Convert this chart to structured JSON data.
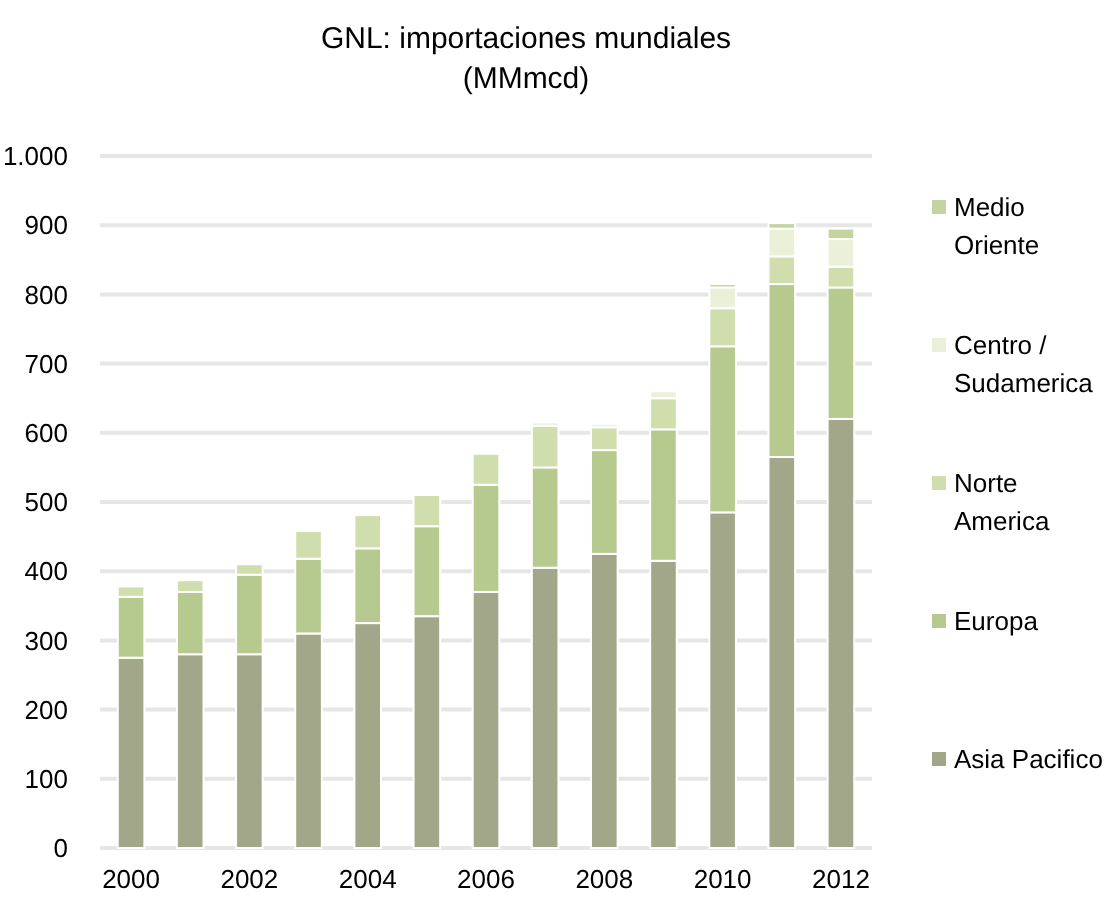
{
  "chart_data": {
    "type": "bar",
    "title": "GNL: importaciones mundiales",
    "subtitle": "(MMmcd)",
    "stacked": true,
    "categories": [
      "2000",
      null,
      "2002",
      null,
      "2004",
      null,
      "2006",
      null,
      "2008",
      null,
      "2010",
      null,
      "2012"
    ],
    "series": [
      {
        "name": "Asia Pacifico",
        "color": "#a3a78a",
        "values": [
          275,
          280,
          280,
          310,
          325,
          335,
          370,
          405,
          425,
          415,
          485,
          565,
          620
        ]
      },
      {
        "name": "Europa",
        "color": "#b6ca90",
        "values": [
          88,
          90,
          115,
          108,
          108,
          130,
          155,
          145,
          150,
          190,
          240,
          250,
          190
        ]
      },
      {
        "name": "Norte America",
        "color": "#d0ddad",
        "values": [
          15,
          17,
          15,
          40,
          48,
          45,
          45,
          60,
          33,
          45,
          55,
          40,
          30
        ]
      },
      {
        "name": "Centro / Sudamerica",
        "color": "#ebf1d8",
        "values": [
          0,
          0,
          0,
          0,
          0,
          0,
          3,
          5,
          5,
          10,
          30,
          40,
          40
        ]
      },
      {
        "name": "Medio Oriente",
        "color": "#c3d4a1",
        "values": [
          0,
          0,
          0,
          0,
          0,
          0,
          0,
          0,
          0,
          0,
          5,
          8,
          15
        ]
      }
    ],
    "ylim": [
      0,
      1000
    ],
    "yticks": [
      0,
      100,
      200,
      300,
      400,
      500,
      600,
      700,
      800,
      900,
      {
        "value": 1000,
        "label": "1.000"
      }
    ],
    "grid": "y",
    "legend": "right"
  }
}
